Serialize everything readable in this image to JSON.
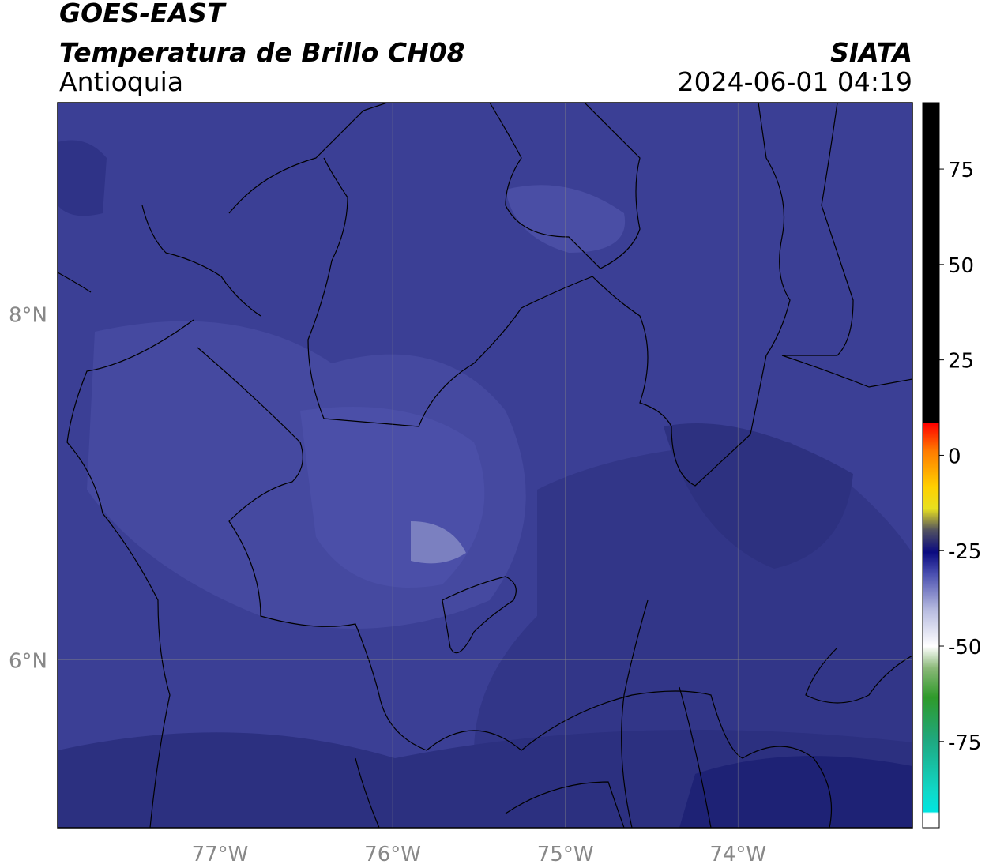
{
  "header": {
    "title": "GOES-EAST",
    "subtitle": "Temperatura de Brillo CH08",
    "region": "Antioquia",
    "source": "SIATA",
    "datetime": "2024-06-01 04:19"
  },
  "map": {
    "lonlim": [
      -77.94,
      -72.99
    ],
    "latlim": [
      5.03,
      9.22
    ],
    "lon_ticks": [
      {
        "value": -77,
        "label": "77°W"
      },
      {
        "value": -76,
        "label": "76°W"
      },
      {
        "value": -75,
        "label": "75°W"
      },
      {
        "value": -74,
        "label": "74°W"
      }
    ],
    "lat_ticks": [
      {
        "value": 8,
        "label": "8°N"
      },
      {
        "value": 6,
        "label": "6°N"
      }
    ],
    "grid": true
  },
  "colorbar": {
    "lim": [
      -97.6,
      92.4
    ],
    "ticks": [
      75,
      50,
      25,
      0,
      -25,
      -50,
      -75
    ]
  }
}
